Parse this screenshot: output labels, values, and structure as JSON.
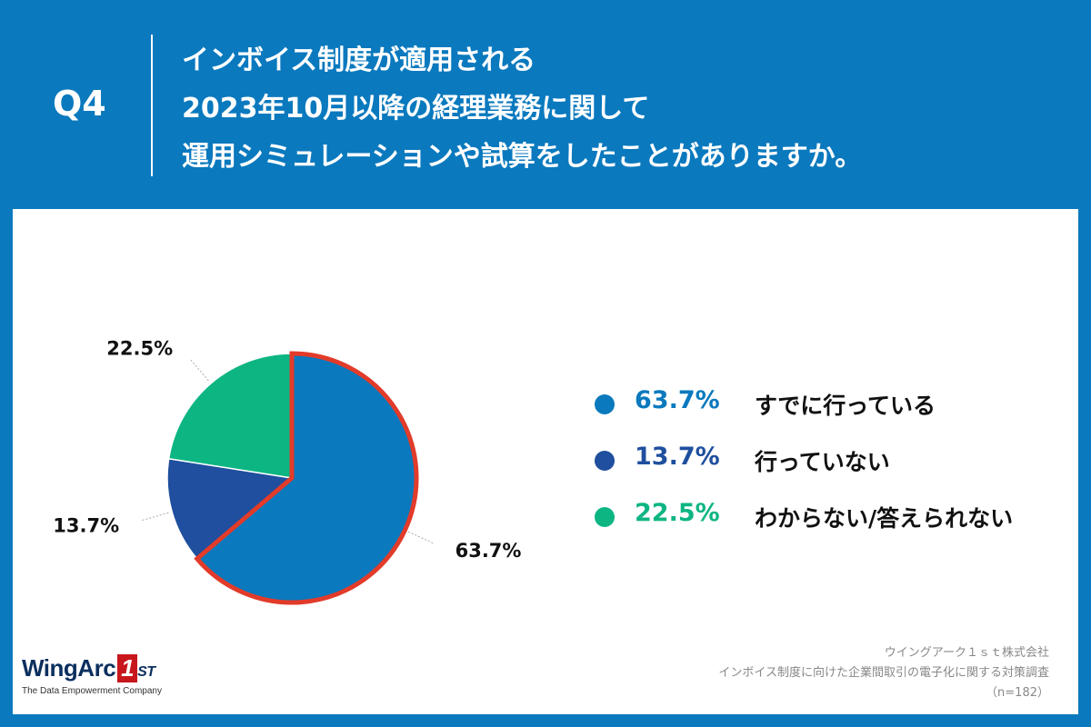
{
  "header": {
    "question": "Q4",
    "title_lines": [
      "インボイス制度が適用される",
      "2023年10月以降の経理業務に関して",
      "運用シミュレーションや試算をしたことがありますか。"
    ]
  },
  "chart_data": {
    "type": "pie",
    "title": "インボイス制度が適用される2023年10月以降の経理業務に関して運用シミュレーションや試算をしたことがありますか。",
    "slices": [
      {
        "label": "すでに行っている",
        "value": 63.7,
        "value_label": "63.7%",
        "color": "#0a79be",
        "highlight": true
      },
      {
        "label": "行っていない",
        "value": 13.7,
        "value_label": "13.7%",
        "color": "#1f4f9e",
        "highlight": false
      },
      {
        "label": "わからない/答えられない",
        "value": 22.5,
        "value_label": "22.5%",
        "color": "#0db583",
        "highlight": false
      }
    ],
    "highlight_color": "#e23b2a",
    "legend_placement": "right"
  },
  "legend": [
    {
      "value_label": "63.7%",
      "label": "すでに行っている",
      "color": "#0a79be"
    },
    {
      "value_label": "13.7%",
      "label": "行っていない",
      "color": "#1f4f9e"
    },
    {
      "value_label": "22.5%",
      "label": "わからない/答えられない",
      "color": "#0db583"
    }
  ],
  "logo": {
    "brand": "WingArc",
    "one": "1",
    "st": "ST",
    "tagline": "The Data Empowerment Company"
  },
  "footer": {
    "company": "ウイングアーク１ｓｔ株式会社",
    "survey": "インボイス制度に向けた企業間取引の電子化に関する対策調査",
    "sample": "（n=182）"
  }
}
